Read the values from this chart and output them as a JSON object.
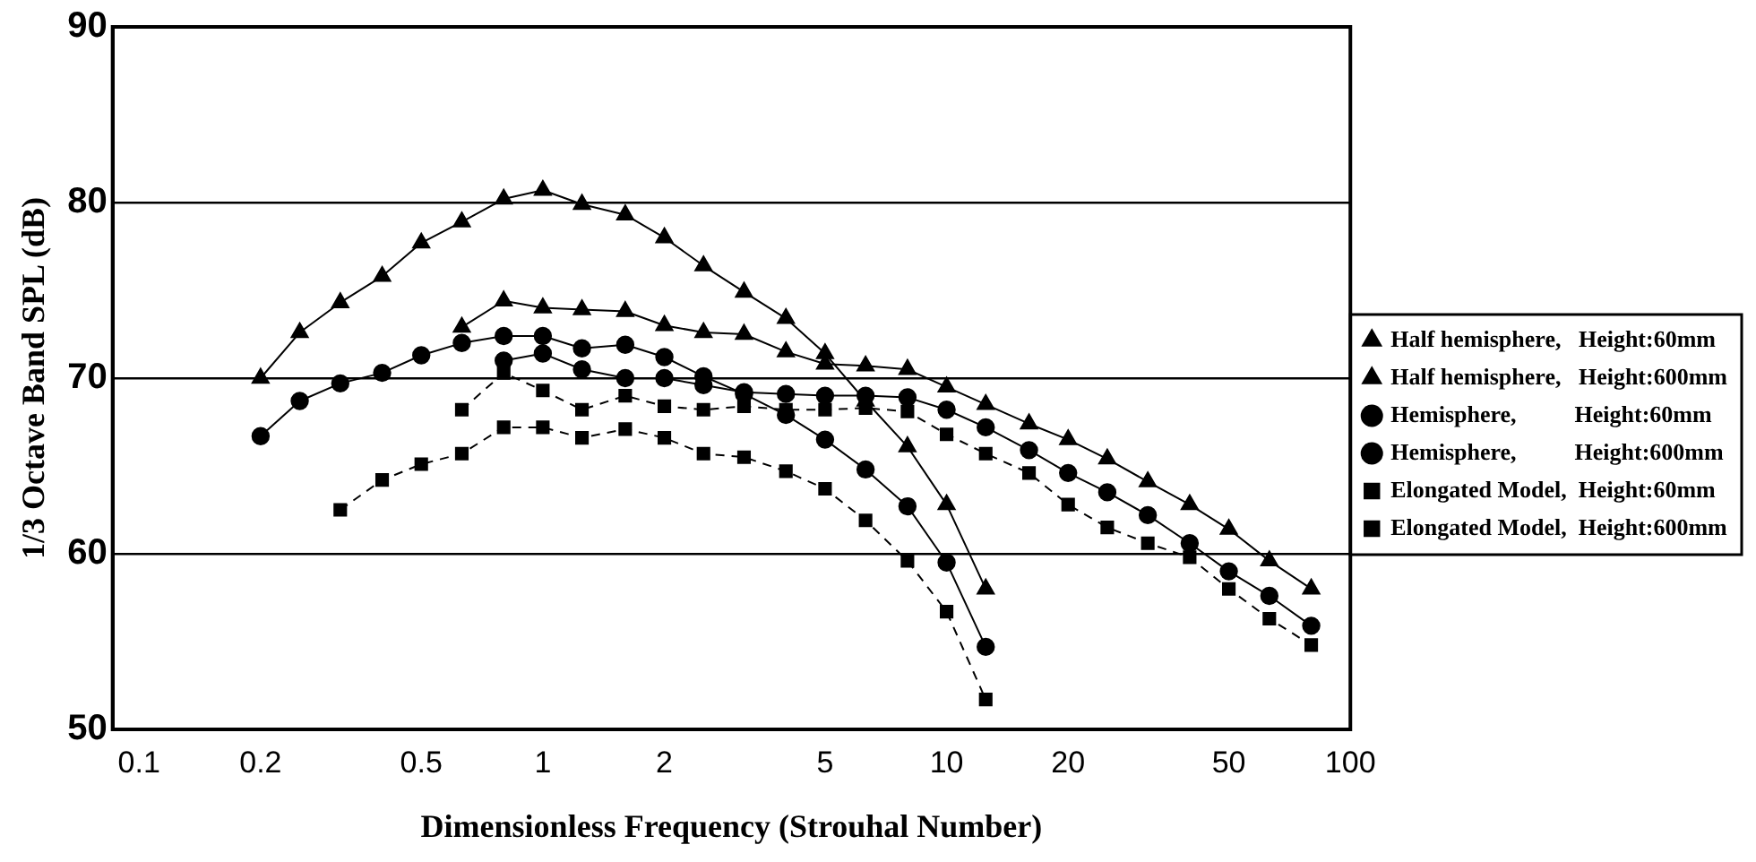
{
  "chart_data": {
    "type": "line",
    "xlabel": "Dimensionless Frequency (Strouhal Number)",
    "ylabel": "1/3 Octave Band SPL (dB)",
    "log": "x",
    "grid": "y",
    "legend": "right",
    "xlim": [
      0.086,
      100
    ],
    "xticks": [
      0.1,
      0.2,
      0.5,
      1,
      2,
      5,
      10,
      20,
      50,
      100
    ],
    "ylim": [
      50,
      90
    ],
    "yticks": [
      50,
      60,
      70,
      80,
      90
    ],
    "series": [
      {
        "name": "Half hemisphere,   Height:60mm",
        "color": "#000000",
        "marker": "triangle",
        "line_style": "solid",
        "x": [
          0.2,
          0.25,
          0.315,
          0.4,
          0.5,
          0.63,
          0.8,
          1,
          1.25,
          1.6,
          2,
          2.5,
          3.15,
          4,
          5,
          6.3,
          8,
          10,
          12.5
        ],
        "values": [
          70.0,
          72.6,
          74.3,
          75.8,
          77.7,
          78.9,
          80.2,
          80.7,
          79.9,
          79.3,
          78.0,
          76.4,
          74.9,
          73.4,
          71.4,
          68.7,
          66.1,
          62.8,
          58.0
        ]
      },
      {
        "name": "Half hemisphere,   Height:600mm",
        "color": "#000000",
        "marker": "triangle",
        "line_style": "solid",
        "x": [
          0.63,
          0.8,
          1,
          1.25,
          1.6,
          2,
          2.5,
          3.15,
          4,
          5,
          6.3,
          8,
          10,
          12.5,
          16,
          20,
          25,
          31.5,
          40,
          50,
          63,
          80
        ],
        "values": [
          72.9,
          74.4,
          74.0,
          73.9,
          73.8,
          73.0,
          72.6,
          72.5,
          71.5,
          70.8,
          70.7,
          70.5,
          69.5,
          68.5,
          67.4,
          66.5,
          65.4,
          64.1,
          62.8,
          61.4,
          59.6,
          58.0
        ]
      },
      {
        "name": "Hemisphere,          Height:60mm",
        "color": "#000000",
        "marker": "circle",
        "line_style": "solid",
        "x": [
          0.2,
          0.25,
          0.315,
          0.4,
          0.5,
          0.63,
          0.8,
          1,
          1.25,
          1.6,
          2,
          2.5,
          3.15,
          4,
          5,
          6.3,
          8,
          10,
          12.5
        ],
        "values": [
          66.7,
          68.7,
          69.7,
          70.3,
          71.3,
          72.0,
          72.4,
          72.4,
          71.7,
          71.9,
          71.2,
          70.1,
          69.1,
          67.9,
          66.5,
          64.8,
          62.7,
          59.5,
          54.7
        ]
      },
      {
        "name": "Hemisphere,          Height:600mm",
        "color": "#000000",
        "marker": "circle",
        "line_style": "solid",
        "x": [
          0.8,
          1,
          1.25,
          1.6,
          2,
          2.5,
          3.15,
          4,
          5,
          6.3,
          8,
          10,
          12.5,
          16,
          20,
          25,
          31.5,
          40,
          50,
          63,
          80
        ],
        "values": [
          71.0,
          71.4,
          70.5,
          70.0,
          70.0,
          69.6,
          69.2,
          69.1,
          69.0,
          69.0,
          68.9,
          68.2,
          67.2,
          65.9,
          64.6,
          63.5,
          62.2,
          60.6,
          59.0,
          57.6,
          55.9
        ]
      },
      {
        "name": "Elongated Model,  Height:60mm",
        "color": "#000000",
        "marker": "square",
        "line_style": "dashed",
        "x": [
          0.315,
          0.4,
          0.5,
          0.63,
          0.8,
          1,
          1.25,
          1.6,
          2,
          2.5,
          3.15,
          4,
          5,
          6.3,
          8,
          10,
          12.5
        ],
        "values": [
          62.5,
          64.2,
          65.1,
          65.7,
          67.2,
          67.2,
          66.6,
          67.1,
          66.6,
          65.7,
          65.5,
          64.7,
          63.7,
          61.9,
          59.6,
          56.7,
          51.7
        ]
      },
      {
        "name": "Elongated Model,  Height:600mm",
        "color": "#000000",
        "marker": "square",
        "line_style": "dashed",
        "x": [
          0.63,
          0.8,
          1,
          1.25,
          1.6,
          2,
          2.5,
          3.15,
          4,
          5,
          6.3,
          8,
          10,
          12.5,
          16,
          20,
          25,
          31.5,
          40,
          50,
          63,
          80
        ],
        "values": [
          68.2,
          70.3,
          69.3,
          68.2,
          69.0,
          68.4,
          68.2,
          68.4,
          68.2,
          68.2,
          68.3,
          68.1,
          66.8,
          65.7,
          64.6,
          62.8,
          61.5,
          60.6,
          59.8,
          58.0,
          56.3,
          54.8
        ]
      }
    ]
  }
}
